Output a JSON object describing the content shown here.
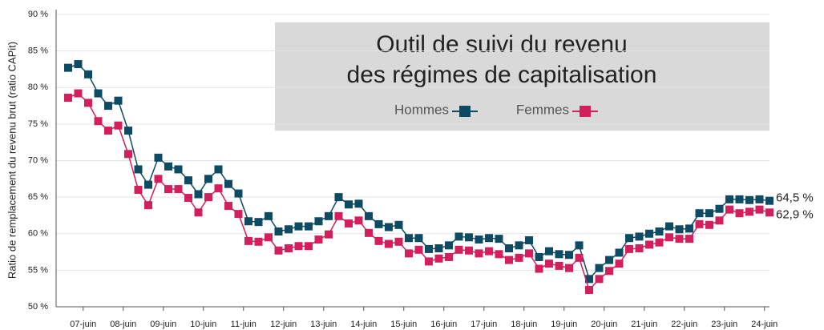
{
  "chart_data": {
    "type": "line",
    "title": [
      "Outil de suivi du revenu",
      "des régimes de capitalisation"
    ],
    "y_label": "Ratio de remplacement du revenu brut (ratio CAPit)",
    "categories": [
      null,
      null,
      "07-juin",
      null,
      null,
      null,
      "08-juin",
      null,
      null,
      null,
      "09-juin",
      null,
      null,
      null,
      "10-juin",
      null,
      null,
      null,
      "11-juin",
      null,
      null,
      null,
      "12-juin",
      null,
      null,
      null,
      "13-juin",
      null,
      null,
      null,
      "14-juin",
      null,
      null,
      null,
      "15-juin",
      null,
      null,
      null,
      "16-juin",
      null,
      null,
      null,
      "17-juin",
      null,
      null,
      null,
      "18-juin",
      null,
      null,
      null,
      "19-juin",
      null,
      null,
      null,
      "20-juin",
      null,
      null,
      null,
      "21-juin",
      null,
      null,
      null,
      "22-juin",
      null,
      null,
      null,
      "23-juin",
      null,
      null,
      null,
      "24-juin"
    ],
    "series": [
      {
        "name": "Hommes",
        "color": "#0d4a63",
        "values": [
          82.7,
          83.2,
          81.8,
          79.2,
          77.5,
          78.2,
          74.1,
          68.8,
          66.7,
          70.4,
          69.2,
          68.8,
          67.3,
          65.4,
          67.5,
          68.8,
          66.8,
          65.5,
          61.7,
          61.6,
          62.4,
          60.3,
          60.6,
          61.0,
          61.0,
          61.7,
          62.4,
          65.0,
          64.0,
          64.1,
          62.4,
          61.3,
          60.9,
          61.2,
          59.4,
          59.4,
          57.9,
          58.0,
          58.4,
          59.6,
          59.5,
          59.2,
          59.4,
          59.3,
          58.0,
          58.4,
          59.1,
          56.8,
          57.6,
          57.2,
          57.1,
          58.4,
          53.8,
          55.3,
          56.4,
          57.4,
          59.4,
          59.6,
          60.0,
          60.3,
          61.0,
          60.6,
          60.7,
          62.8,
          62.8,
          63.4,
          64.7,
          64.7,
          64.6,
          64.7,
          64.5
        ],
        "value_labels": [
          null,
          null,
          null,
          null,
          null,
          null,
          null,
          null,
          null,
          null,
          null,
          null,
          null,
          null,
          null,
          null,
          null,
          null,
          null,
          null,
          null,
          null,
          null,
          null,
          null,
          null,
          null,
          null,
          null,
          null,
          null,
          null,
          null,
          null,
          null,
          null,
          null,
          null,
          null,
          null,
          null,
          null,
          null,
          null,
          null,
          null,
          null,
          null,
          null,
          null,
          null,
          null,
          null,
          null,
          null,
          null,
          null,
          null,
          null,
          null,
          null,
          null,
          null,
          null,
          null,
          null,
          null,
          null,
          null,
          null,
          "64,5 %"
        ]
      },
      {
        "name": "Femmes",
        "color": "#d41f5d",
        "values": [
          78.6,
          79.2,
          77.9,
          75.4,
          74.1,
          74.8,
          70.9,
          66.0,
          63.9,
          67.5,
          66.1,
          66.1,
          64.9,
          62.9,
          65.0,
          66.2,
          63.8,
          62.7,
          59.0,
          58.9,
          59.5,
          57.7,
          58.0,
          58.3,
          58.3,
          59.2,
          59.9,
          62.4,
          61.4,
          61.8,
          60.1,
          59.0,
          58.6,
          58.9,
          57.3,
          57.8,
          56.2,
          56.6,
          56.8,
          57.8,
          57.7,
          57.3,
          57.6,
          57.2,
          56.4,
          56.7,
          57.3,
          55.2,
          55.9,
          55.6,
          55.3,
          56.7,
          52.3,
          53.8,
          54.9,
          55.9,
          57.9,
          58.0,
          58.5,
          58.8,
          59.5,
          59.3,
          59.3,
          61.3,
          61.2,
          61.8,
          63.3,
          62.8,
          63.0,
          63.3,
          62.9
        ],
        "value_labels": [
          null,
          null,
          null,
          null,
          null,
          null,
          null,
          null,
          null,
          null,
          null,
          null,
          null,
          null,
          null,
          null,
          null,
          null,
          null,
          null,
          null,
          null,
          null,
          null,
          null,
          null,
          null,
          null,
          null,
          null,
          null,
          null,
          null,
          null,
          null,
          null,
          null,
          null,
          null,
          null,
          null,
          null,
          null,
          null,
          null,
          null,
          null,
          null,
          null,
          null,
          null,
          null,
          null,
          null,
          null,
          null,
          null,
          null,
          null,
          null,
          null,
          null,
          null,
          null,
          null,
          null,
          null,
          null,
          null,
          null,
          "62,9 %"
        ]
      }
    ],
    "ylim": [
      50,
      90
    ],
    "yticks": [
      {
        "value": 50,
        "label": "50 %"
      },
      {
        "value": 55,
        "label": "55 %"
      },
      {
        "value": 60,
        "label": "60 %"
      },
      {
        "value": 65,
        "label": "65 %"
      },
      {
        "value": 70,
        "label": "70 %"
      },
      {
        "value": 75,
        "label": "75 %"
      },
      {
        "value": 80,
        "label": "80 %"
      },
      {
        "value": 85,
        "label": "85 %"
      },
      {
        "value": 90,
        "label": "90 %"
      }
    ],
    "grid": true
  }
}
